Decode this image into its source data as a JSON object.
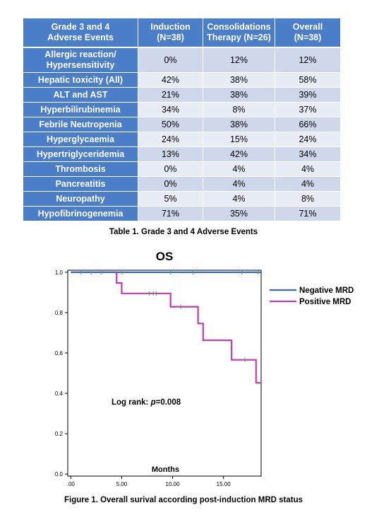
{
  "table": {
    "caption": "Table 1. Grade 3 and 4 Adverse Events",
    "headers": [
      [
        "Grade 3 and 4",
        "Adverse Events"
      ],
      [
        "Induction",
        "(N=38)"
      ],
      [
        "Consolidations",
        "Therapy (N=26)"
      ],
      [
        "Overall",
        "(N=38)"
      ]
    ],
    "rows": [
      {
        "event": [
          "Allergic reaction/",
          "Hypersensitivity"
        ],
        "induction": "0%",
        "consolidation": "12%",
        "overall": "12%"
      },
      {
        "event": [
          "Hepatic toxicity (All)"
        ],
        "induction": "42%",
        "consolidation": "38%",
        "overall": "58%"
      },
      {
        "event": [
          "ALT and AST"
        ],
        "induction": "21%",
        "consolidation": "38%",
        "overall": "39%"
      },
      {
        "event": [
          "Hyperbilirubinemia"
        ],
        "induction": "34%",
        "consolidation": "8%",
        "overall": "37%"
      },
      {
        "event": [
          "Febrile Neutropenia"
        ],
        "induction": "50%",
        "consolidation": "38%",
        "overall": "66%"
      },
      {
        "event": [
          "Hyperglycaemia"
        ],
        "induction": "24%",
        "consolidation": "15%",
        "overall": "24%"
      },
      {
        "event": [
          "Hypertriglyceridemia"
        ],
        "induction": "13%",
        "consolidation": "42%",
        "overall": "34%"
      },
      {
        "event": [
          "Thrombosis"
        ],
        "induction": "0%",
        "consolidation": "4%",
        "overall": "4%"
      },
      {
        "event": [
          "Pancreatitis"
        ],
        "induction": "0%",
        "consolidation": "4%",
        "overall": "4%"
      },
      {
        "event": [
          "Neuropathy"
        ],
        "induction": "5%",
        "consolidation": "4%",
        "overall": "8%"
      },
      {
        "event": [
          "Hypofibrinogenemia"
        ],
        "induction": "71%",
        "consolidation": "35%",
        "overall": "71%"
      }
    ]
  },
  "figure": {
    "caption": "Figure 1. Overall surival according post-induction MRD status",
    "annotation": {
      "prefix": "Log rank: ",
      "p": "p",
      "suffix": "=0.008"
    }
  },
  "chart_data": {
    "type": "line",
    "step": true,
    "title": "OS",
    "xlabel": "Months",
    "ylabel": "",
    "xlim": [
      -0.3,
      18.7
    ],
    "ylim": [
      -0.01,
      1.01
    ],
    "x_ticks": [
      0,
      5,
      10,
      15
    ],
    "x_tick_labels": [
      ".00",
      "5.00",
      "10.00",
      "15.00"
    ],
    "y_ticks": [
      0,
      0.2,
      0.4,
      0.6,
      0.8,
      1.0
    ],
    "y_tick_labels": [
      "0.0",
      "0.2",
      "0.4",
      "0.6",
      "0.8",
      "1.0"
    ],
    "grid": false,
    "legend_position": "right",
    "colors": {
      "negative": "#3a66c4",
      "positive": "#c23bb0",
      "censor": "#4caf50"
    },
    "series": [
      {
        "name": "Negative MRD",
        "color": "#3a66c4",
        "x": [
          0,
          18.7
        ],
        "y": [
          1.0,
          1.0
        ],
        "censored": [
          {
            "x": 1.0,
            "y": 1.0
          },
          {
            "x": 2.0,
            "y": 1.0
          },
          {
            "x": 3.0,
            "y": 1.0
          },
          {
            "x": 5.0,
            "y": 1.0
          },
          {
            "x": 9.8,
            "y": 1.0
          },
          {
            "x": 12.0,
            "y": 1.0
          },
          {
            "x": 16.8,
            "y": 1.0
          },
          {
            "x": 18.4,
            "y": 1.0
          }
        ]
      },
      {
        "name": "Positive MRD",
        "color": "#c23bb0",
        "x": [
          0,
          4.5,
          4.5,
          5.0,
          5.0,
          9.8,
          9.8,
          12.5,
          12.5,
          13.0,
          13.0,
          15.8,
          15.8,
          18.2,
          18.2,
          18.7
        ],
        "y": [
          1.0,
          1.0,
          0.947,
          0.947,
          0.895,
          0.895,
          0.829,
          0.829,
          0.746,
          0.746,
          0.663,
          0.663,
          0.566,
          0.566,
          0.452,
          0.452
        ],
        "censored": [
          {
            "x": 7.7,
            "y": 0.895
          },
          {
            "x": 8.1,
            "y": 0.895
          },
          {
            "x": 8.4,
            "y": 0.895
          },
          {
            "x": 10.8,
            "y": 0.829
          },
          {
            "x": 17.1,
            "y": 0.566
          }
        ]
      }
    ]
  }
}
